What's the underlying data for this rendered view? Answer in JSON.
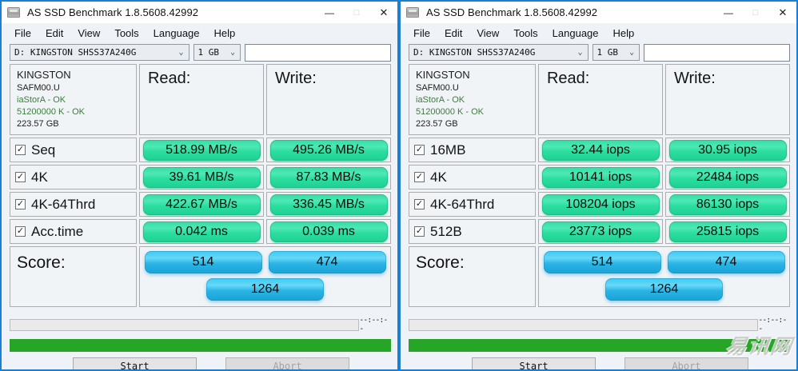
{
  "titlebar": {
    "title": "AS SSD Benchmark 1.8.5608.42992"
  },
  "menu": [
    "File",
    "Edit",
    "View",
    "Tools",
    "Language",
    "Help"
  ],
  "toolbar": {
    "drive": "D: KINGSTON SHSS37A240G",
    "test_size": "1 GB",
    "textbox_value": ""
  },
  "drive_info": {
    "model": "KINGSTON",
    "firmware": "SAFM00.U",
    "driver": "iaStorA - OK",
    "alignment": "51200000 K - OK",
    "capacity": "223.57 GB"
  },
  "columns": {
    "read": "Read:",
    "write": "Write:"
  },
  "windows": [
    {
      "rows": [
        {
          "label": "Seq",
          "read": "518.99 MB/s",
          "write": "495.26 MB/s"
        },
        {
          "label": "4K",
          "read": "39.61 MB/s",
          "write": "87.83 MB/s"
        },
        {
          "label": "4K-64Thrd",
          "read": "422.67 MB/s",
          "write": "336.45 MB/s"
        },
        {
          "label": "Acc.time",
          "read": "0.042 ms",
          "write": "0.039 ms"
        }
      ],
      "score": {
        "label": "Score:",
        "read": "514",
        "write": "474",
        "total": "1264"
      }
    },
    {
      "rows": [
        {
          "label": "16MB",
          "read": "32.44 iops",
          "write": "30.95 iops"
        },
        {
          "label": "4K",
          "read": "10141 iops",
          "write": "22484 iops"
        },
        {
          "label": "4K-64Thrd",
          "read": "108204 iops",
          "write": "86130 iops"
        },
        {
          "label": "512B",
          "read": "23773 iops",
          "write": "25815 iops"
        }
      ],
      "score": {
        "label": "Score:",
        "read": "514",
        "write": "474",
        "total": "1264"
      }
    }
  ],
  "footer": {
    "eta": "--:--:--",
    "start_label": "Start",
    "abort_label": "Abort"
  },
  "watermark": "易讯网",
  "colors": {
    "accent_border": "#1b7fd4",
    "result_green": "#2bdfa0",
    "score_blue": "#2ab4e5",
    "progress_green": "#27a527",
    "ok_text_green": "#3e7c3e"
  }
}
